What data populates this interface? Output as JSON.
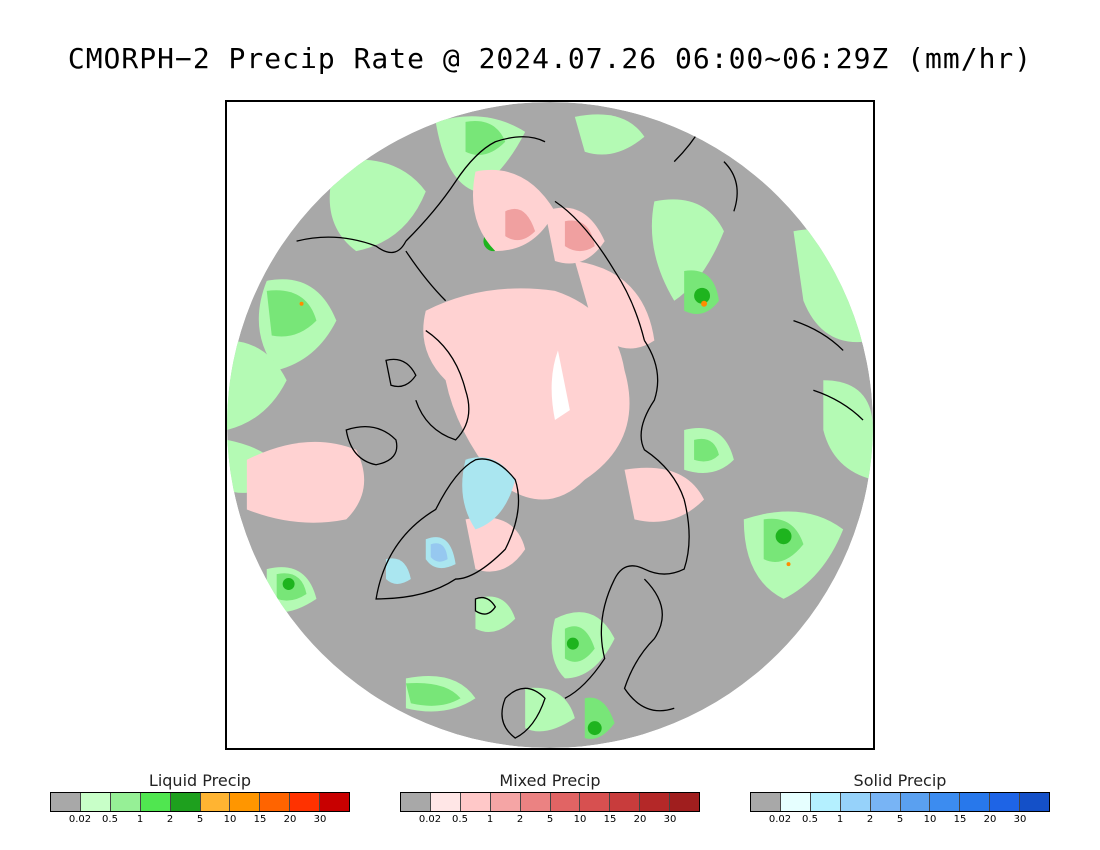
{
  "title": "CMORPH−2 Precip Rate @ 2024.07.26 06:00~06:29Z (mm/hr)",
  "map": {
    "projection": "north-polar-stereographic",
    "colors": {
      "no_precip": "#a8a8a8",
      "outside": "#ffffff",
      "coast": "#000000",
      "liquid_light": "#b4fab4",
      "liquid_mid": "#78e678",
      "liquid_heavy": "#1eb41e",
      "liquid_extreme": "#ff8c00",
      "mixed_light": "#ffd2d2",
      "mixed_mid": "#f0a0a0",
      "solid_light": "#aae6f0",
      "solid_mid": "#96c8f0"
    }
  },
  "legends": [
    {
      "title": "Liquid Precip",
      "colors": [
        "#a8a8a8",
        "#c8ffc8",
        "#96f096",
        "#50e650",
        "#1ea01e",
        "#ffb432",
        "#ff9600",
        "#ff6400",
        "#ff3200",
        "#c80000"
      ],
      "ticks": [
        "0.02",
        "0.5",
        "1",
        "2",
        "5",
        "10",
        "15",
        "20",
        "30"
      ]
    },
    {
      "title": "Mixed Precip",
      "colors": [
        "#a8a8a8",
        "#ffe6e6",
        "#ffc8c8",
        "#f5a5a5",
        "#eb8282",
        "#e16464",
        "#d75050",
        "#c83c3c",
        "#b42828",
        "#a01e1e"
      ],
      "ticks": [
        "0.02",
        "0.5",
        "1",
        "2",
        "5",
        "10",
        "15",
        "20",
        "30"
      ]
    },
    {
      "title": "Solid Precip",
      "colors": [
        "#a8a8a8",
        "#e6ffff",
        "#b4f0ff",
        "#96d2fa",
        "#78b4f5",
        "#5aa0f0",
        "#3c8cf0",
        "#2878eb",
        "#1e64e6",
        "#1450c8"
      ],
      "ticks": [
        "0.02",
        "0.5",
        "1",
        "2",
        "5",
        "10",
        "15",
        "20",
        "30"
      ]
    }
  ]
}
